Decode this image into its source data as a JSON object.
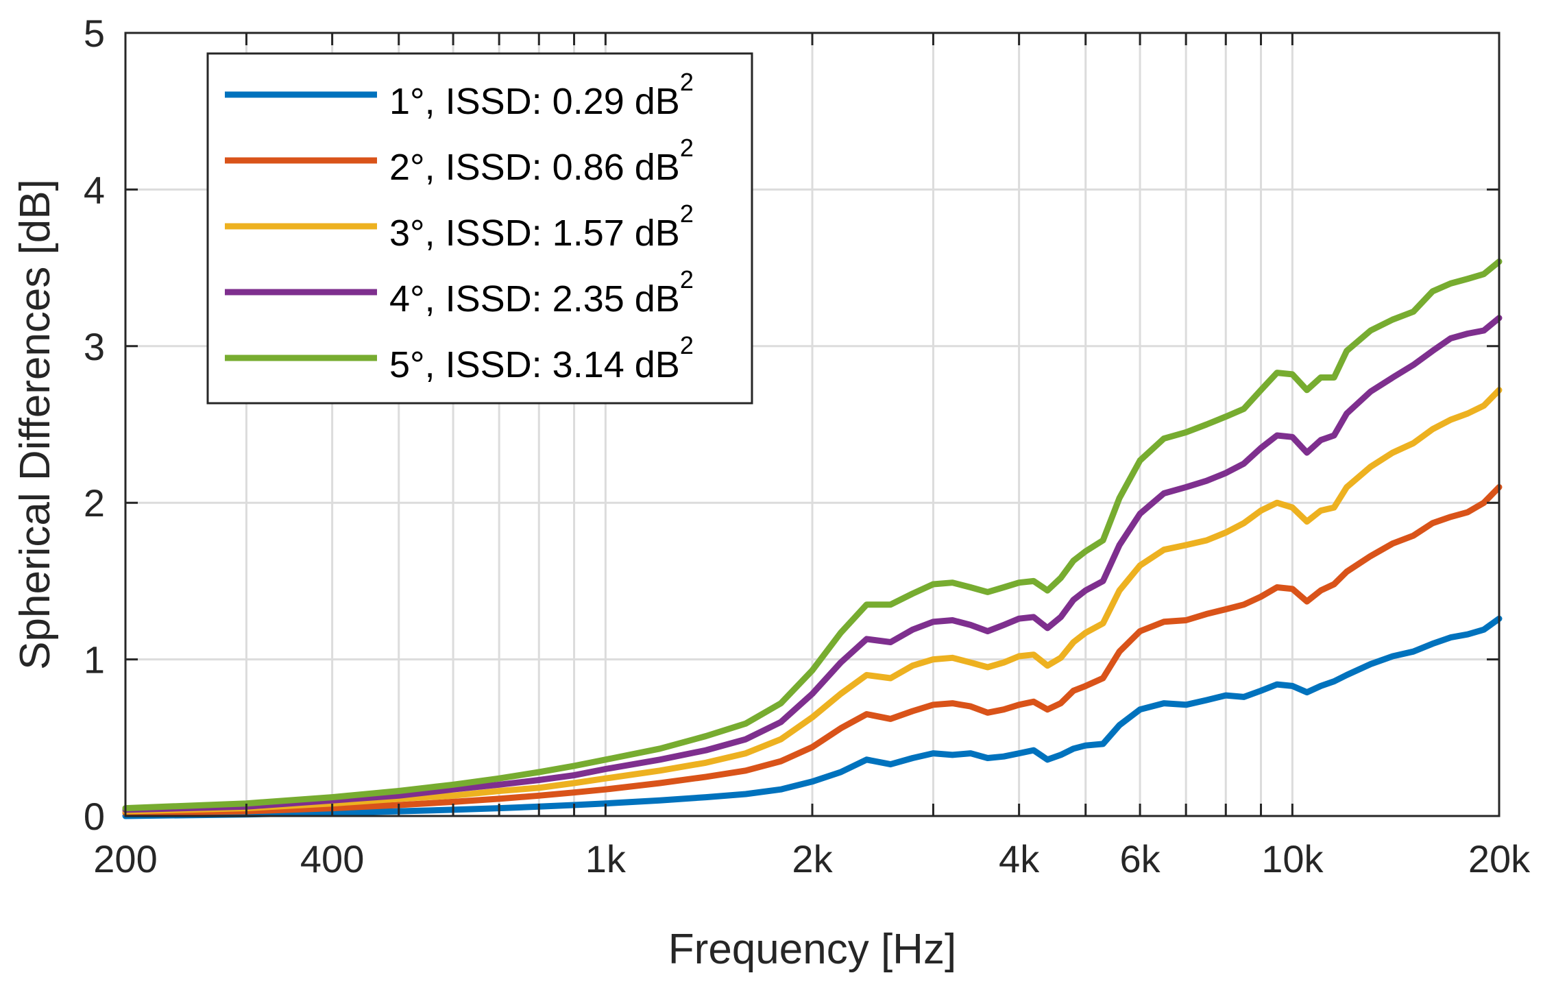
{
  "chart_data": {
    "type": "line",
    "title": "",
    "xlabel": "Frequency [Hz]",
    "ylabel": "Spherical Differences [dB]",
    "xscale": "log",
    "xlim": [
      200,
      20000
    ],
    "ylim": [
      0,
      5
    ],
    "grid": true,
    "legend_position": "top-left",
    "xticks": [
      {
        "value": 200,
        "label": "200"
      },
      {
        "value": 400,
        "label": "400"
      },
      {
        "value": 1000,
        "label": "1k"
      },
      {
        "value": 2000,
        "label": "2k"
      },
      {
        "value": 4000,
        "label": "4k"
      },
      {
        "value": 6000,
        "label": "6k"
      },
      {
        "value": 10000,
        "label": "10k"
      },
      {
        "value": 20000,
        "label": "20k"
      }
    ],
    "xgrid": [
      200,
      300,
      400,
      500,
      600,
      700,
      800,
      900,
      1000,
      2000,
      3000,
      4000,
      5000,
      6000,
      7000,
      8000,
      9000,
      10000,
      20000
    ],
    "yticks": [
      {
        "value": 0,
        "label": "0"
      },
      {
        "value": 1,
        "label": "1"
      },
      {
        "value": 2,
        "label": "2"
      },
      {
        "value": 3,
        "label": "3"
      },
      {
        "value": 4,
        "label": "4"
      },
      {
        "value": 5,
        "label": "5"
      }
    ],
    "x": [
      200,
      300,
      400,
      500,
      600,
      700,
      800,
      900,
      1000,
      1200,
      1400,
      1600,
      1800,
      2000,
      2200,
      2400,
      2600,
      2800,
      3000,
      3200,
      3400,
      3600,
      3800,
      4000,
      4200,
      4400,
      4600,
      4800,
      5000,
      5300,
      5600,
      6000,
      6500,
      7000,
      7500,
      8000,
      8500,
      9000,
      9500,
      10000,
      10500,
      11000,
      11500,
      12000,
      13000,
      14000,
      15000,
      16000,
      17000,
      18000,
      19000,
      20000
    ],
    "series": [
      {
        "name": "1°, ISSD: 0.29 dB",
        "color": "#0072BD",
        "values": [
          0.0,
          0.01,
          0.02,
          0.03,
          0.04,
          0.05,
          0.06,
          0.07,
          0.08,
          0.1,
          0.12,
          0.14,
          0.17,
          0.22,
          0.28,
          0.36,
          0.33,
          0.37,
          0.4,
          0.39,
          0.4,
          0.37,
          0.38,
          0.4,
          0.42,
          0.36,
          0.39,
          0.43,
          0.45,
          0.46,
          0.58,
          0.68,
          0.72,
          0.71,
          0.74,
          0.77,
          0.76,
          0.8,
          0.84,
          0.83,
          0.79,
          0.83,
          0.86,
          0.9,
          0.97,
          1.02,
          1.05,
          1.1,
          1.14,
          1.16,
          1.19,
          1.26
        ]
      },
      {
        "name": "2°, ISSD: 0.86 dB",
        "color": "#D95319",
        "values": [
          0.02,
          0.03,
          0.05,
          0.07,
          0.09,
          0.11,
          0.13,
          0.15,
          0.17,
          0.21,
          0.25,
          0.29,
          0.35,
          0.44,
          0.56,
          0.65,
          0.62,
          0.67,
          0.71,
          0.72,
          0.7,
          0.66,
          0.68,
          0.71,
          0.73,
          0.68,
          0.72,
          0.8,
          0.83,
          0.88,
          1.05,
          1.18,
          1.24,
          1.25,
          1.29,
          1.32,
          1.35,
          1.4,
          1.46,
          1.45,
          1.37,
          1.44,
          1.48,
          1.56,
          1.66,
          1.74,
          1.79,
          1.87,
          1.91,
          1.94,
          2.0,
          2.1
        ]
      },
      {
        "name": "3°, ISSD: 1.57 dB",
        "color": "#EDB120",
        "values": [
          0.03,
          0.05,
          0.08,
          0.11,
          0.13,
          0.16,
          0.18,
          0.21,
          0.24,
          0.29,
          0.34,
          0.4,
          0.49,
          0.63,
          0.78,
          0.9,
          0.88,
          0.96,
          1.0,
          1.01,
          0.98,
          0.95,
          0.98,
          1.02,
          1.03,
          0.96,
          1.01,
          1.11,
          1.17,
          1.23,
          1.44,
          1.6,
          1.7,
          1.73,
          1.76,
          1.81,
          1.87,
          1.95,
          2.0,
          1.97,
          1.88,
          1.95,
          1.97,
          2.1,
          2.23,
          2.32,
          2.38,
          2.47,
          2.53,
          2.57,
          2.62,
          2.72
        ]
      },
      {
        "name": "4°, ISSD: 2.35 dB",
        "color": "#7E2F8E",
        "values": [
          0.04,
          0.06,
          0.1,
          0.13,
          0.17,
          0.2,
          0.23,
          0.26,
          0.3,
          0.36,
          0.42,
          0.49,
          0.6,
          0.78,
          0.98,
          1.13,
          1.11,
          1.19,
          1.24,
          1.25,
          1.22,
          1.18,
          1.22,
          1.26,
          1.27,
          1.2,
          1.27,
          1.38,
          1.44,
          1.5,
          1.73,
          1.93,
          2.06,
          2.1,
          2.14,
          2.19,
          2.25,
          2.35,
          2.43,
          2.42,
          2.32,
          2.4,
          2.43,
          2.57,
          2.71,
          2.8,
          2.88,
          2.97,
          3.05,
          3.08,
          3.1,
          3.18
        ]
      },
      {
        "name": "5°, ISSD: 3.14 dB",
        "color": "#77AC30",
        "values": [
          0.05,
          0.08,
          0.12,
          0.16,
          0.2,
          0.24,
          0.28,
          0.32,
          0.36,
          0.43,
          0.51,
          0.59,
          0.72,
          0.93,
          1.17,
          1.35,
          1.35,
          1.42,
          1.48,
          1.49,
          1.46,
          1.43,
          1.46,
          1.49,
          1.5,
          1.44,
          1.52,
          1.63,
          1.69,
          1.76,
          2.03,
          2.27,
          2.41,
          2.45,
          2.5,
          2.55,
          2.6,
          2.72,
          2.83,
          2.82,
          2.72,
          2.8,
          2.8,
          2.97,
          3.1,
          3.17,
          3.22,
          3.35,
          3.4,
          3.43,
          3.46,
          3.54
        ]
      }
    ],
    "legend": [
      {
        "main": "1°, ISSD: 0.29 dB",
        "sup": "2"
      },
      {
        "main": "2°, ISSD: 0.86 dB",
        "sup": "2"
      },
      {
        "main": "3°, ISSD: 1.57 dB",
        "sup": "2"
      },
      {
        "main": "4°, ISSD: 2.35 dB",
        "sup": "2"
      },
      {
        "main": "5°, ISSD: 3.14 dB",
        "sup": "2"
      }
    ]
  }
}
